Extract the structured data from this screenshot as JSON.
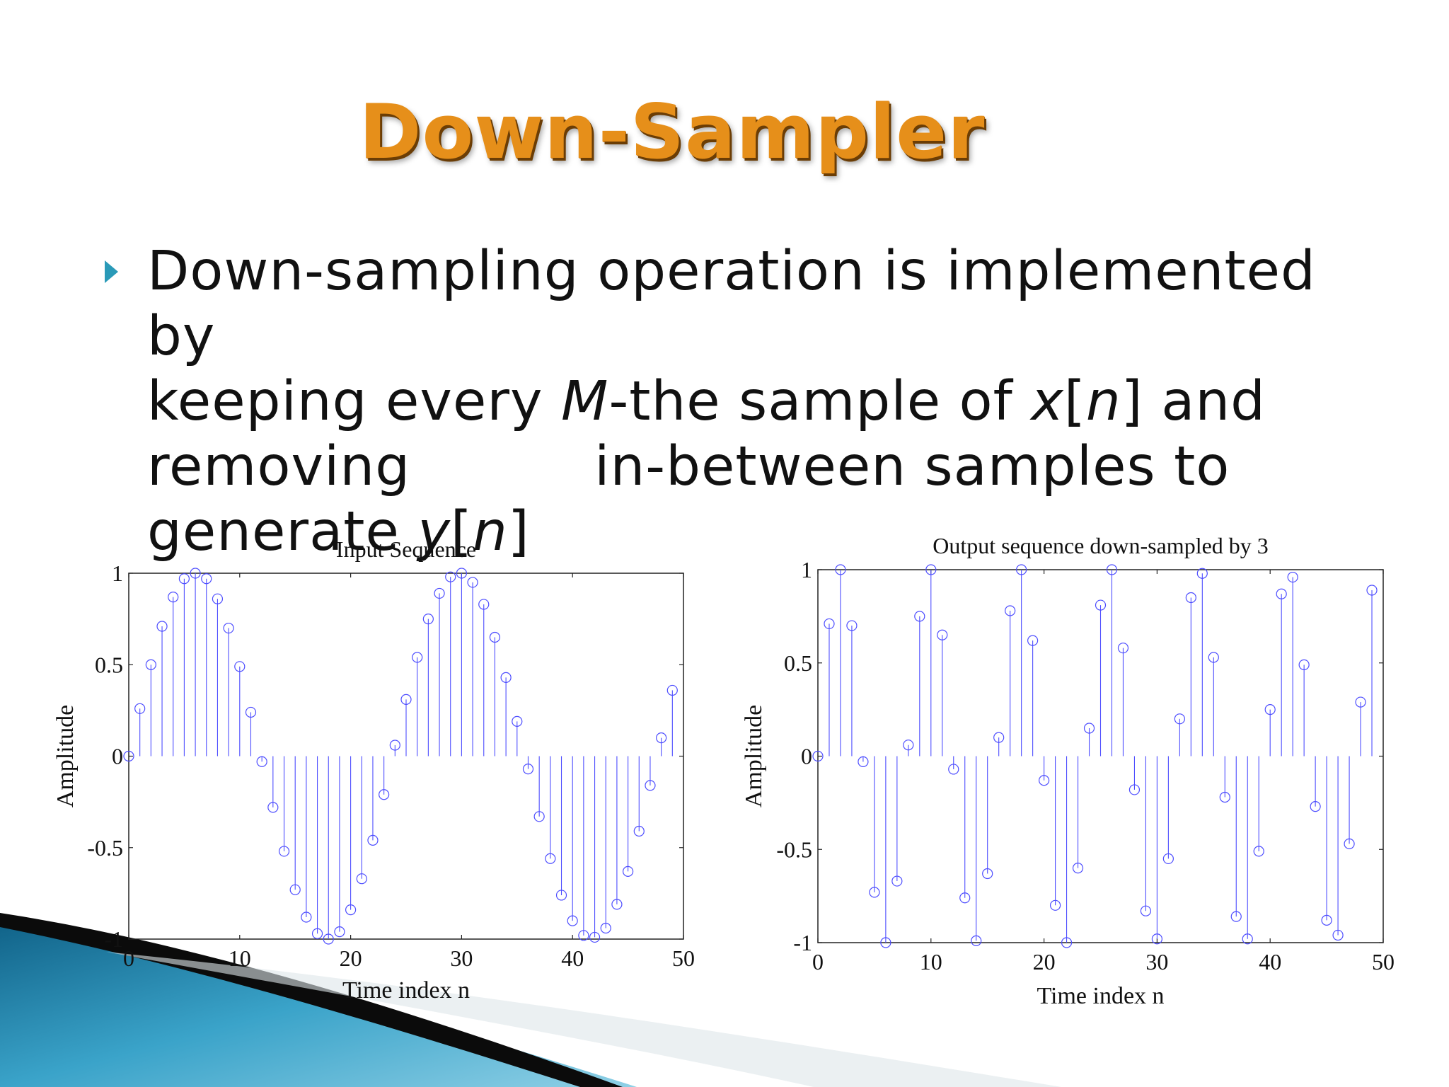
{
  "slide": {
    "title": "Down-Sampler",
    "bullet": {
      "line1": "Down-sampling operation is implemented by",
      "line2_a": "keeping every ",
      "line2_M": "M",
      "line2_b": "-the sample of ",
      "line2_x": "x",
      "line2_c": "[",
      "line2_n": "n",
      "line2_d": "] and",
      "line3_a": "removing",
      "line3_b": "in-between samples to",
      "line4_a": "generate ",
      "line4_y": "y",
      "line4_b": "[",
      "line4_n": "n",
      "line4_c": "]"
    }
  },
  "colors": {
    "title": "#e68f1a",
    "title_shadow": "#6b3d05",
    "bullet_marker": "#2a9ab8",
    "stem": "#4d4dff",
    "deco_dark": "#0b0b0b",
    "deco_blue": "#1f88b0"
  },
  "chart_data": [
    {
      "type": "stem",
      "title": "Input Sequence",
      "xlabel": "Time index n",
      "ylabel": "Amplitude",
      "xlim": [
        0,
        50
      ],
      "ylim": [
        -1,
        1
      ],
      "xticks": [
        "0",
        "10",
        "20",
        "30",
        "40",
        "50"
      ],
      "yticks": [
        "-1",
        "-0.5",
        "0",
        "0.5",
        "1"
      ],
      "grid": false,
      "x": [
        0,
        1,
        2,
        3,
        4,
        5,
        6,
        7,
        8,
        9,
        10,
        11,
        12,
        13,
        14,
        15,
        16,
        17,
        18,
        19,
        20,
        21,
        22,
        23,
        24,
        25,
        26,
        27,
        28,
        29,
        30,
        31,
        32,
        33,
        34,
        35,
        36,
        37,
        38,
        39,
        40,
        41,
        42,
        43,
        44,
        45,
        46,
        47,
        48,
        49
      ],
      "y": [
        0,
        0.26,
        0.5,
        0.71,
        0.87,
        0.97,
        1.0,
        0.97,
        0.86,
        0.7,
        0.49,
        0.24,
        -0.03,
        -0.28,
        -0.52,
        -0.73,
        -0.88,
        -0.97,
        -1.0,
        -0.96,
        -0.84,
        -0.67,
        -0.46,
        -0.21,
        0.06,
        0.31,
        0.54,
        0.75,
        0.89,
        0.98,
        1.0,
        0.95,
        0.83,
        0.65,
        0.43,
        0.19,
        -0.07,
        -0.33,
        -0.56,
        -0.76,
        -0.9,
        -0.98,
        -0.99,
        -0.94,
        -0.81,
        -0.63,
        -0.41,
        -0.16,
        0.1,
        0.36
      ]
    },
    {
      "type": "stem",
      "title": "Output sequence down-sampled by 3",
      "xlabel": "Time index n",
      "ylabel": "Amplitude",
      "xlim": [
        0,
        50
      ],
      "ylim": [
        -1,
        1
      ],
      "xticks": [
        "0",
        "10",
        "20",
        "30",
        "40",
        "50"
      ],
      "yticks": [
        "-1",
        "-0.5",
        "0",
        "0.5",
        "1"
      ],
      "grid": false,
      "x": [
        0,
        1,
        2,
        3,
        4,
        5,
        6,
        7,
        8,
        9,
        10,
        11,
        12,
        13,
        14,
        15,
        16,
        17,
        18,
        19,
        20,
        21,
        22,
        23,
        24,
        25,
        26,
        27,
        28,
        29,
        30,
        31,
        32,
        33,
        34,
        35,
        36,
        37,
        38,
        39,
        40,
        41,
        42,
        43,
        44,
        45,
        46,
        47,
        48,
        49
      ],
      "y": [
        0,
        0.71,
        1.0,
        0.7,
        -0.03,
        -0.73,
        -1.0,
        -0.67,
        0.06,
        0.75,
        1.0,
        0.65,
        -0.07,
        -0.76,
        -0.99,
        -0.63,
        0.1,
        0.78,
        1.0,
        0.62,
        -0.13,
        -0.8,
        -1.0,
        -0.6,
        0.15,
        0.81,
        1.0,
        0.58,
        -0.18,
        -0.83,
        -0.98,
        -0.55,
        0.2,
        0.85,
        0.98,
        0.53,
        -0.22,
        -0.86,
        -0.98,
        -0.51,
        0.25,
        0.87,
        0.96,
        0.49,
        -0.27,
        -0.88,
        -0.96,
        -0.47,
        0.29,
        0.89
      ]
    }
  ]
}
